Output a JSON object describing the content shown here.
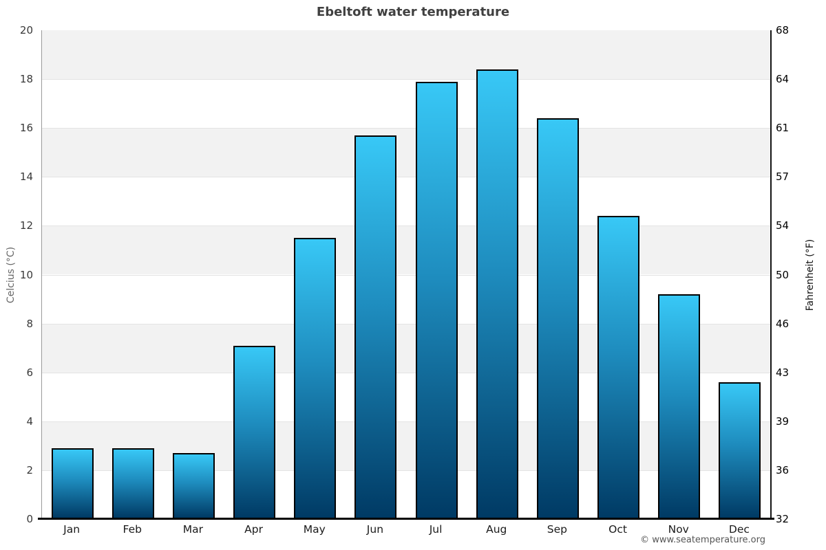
{
  "title": "Ebeltoft water temperature",
  "footer_credit": "© www.seatemperature.org",
  "axes": {
    "left": {
      "label": "Celcius (°C)",
      "ticks": [
        "0",
        "2",
        "4",
        "6",
        "8",
        "10",
        "12",
        "14",
        "16",
        "18",
        "20"
      ]
    },
    "right": {
      "label": "Fahrenheit (°F)",
      "ticks": [
        "32",
        "36",
        "39",
        "43",
        "46",
        "50",
        "54",
        "57",
        "61",
        "64",
        "68"
      ]
    }
  },
  "chart_data": {
    "type": "bar",
    "title": "Ebeltoft water temperature",
    "categories": [
      "Jan",
      "Feb",
      "Mar",
      "Apr",
      "May",
      "Jun",
      "Jul",
      "Aug",
      "Sep",
      "Oct",
      "Nov",
      "Dec"
    ],
    "values": [
      2.9,
      2.9,
      2.7,
      7.1,
      11.5,
      15.7,
      17.9,
      18.4,
      16.4,
      12.4,
      9.2,
      5.6
    ],
    "series_name": "Water temperature (°C)",
    "xlabel": "",
    "ylabel": "Celcius (°C)",
    "ylabel_right": "Fahrenheit (°F)",
    "ylim": [
      0,
      20
    ],
    "y_tick_step": 2,
    "right_axis_ticks_fahrenheit": [
      32,
      36,
      39,
      43,
      46,
      50,
      54,
      57,
      61,
      64,
      68
    ],
    "grid": "alternating-horizontal-bands",
    "legend": "none"
  },
  "colors": {
    "bar_gradient_top": "#38c8f6",
    "bar_gradient_mid": "#1e8cbe",
    "bar_gradient_bottom": "#003a64",
    "bar_border": "#000000",
    "band_shaded": "#f2f2f2",
    "band_plain": "#ffffff",
    "gridline": "#e3e3e3",
    "title_text": "#404040",
    "footer_text": "#555555"
  }
}
